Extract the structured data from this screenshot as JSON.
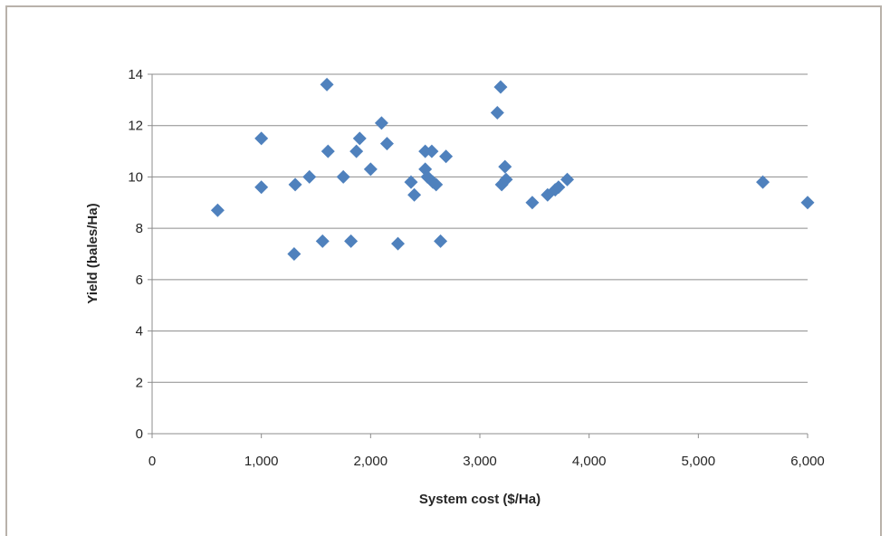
{
  "chart_data": {
    "type": "scatter",
    "xlabel": "System cost ($/Ha)",
    "ylabel": "Yield (bales/Ha)",
    "xlim": [
      0,
      6000
    ],
    "ylim": [
      0,
      14
    ],
    "x_ticks": [
      "0",
      "1,000",
      "2,000",
      "3,000",
      "4,000",
      "5,000",
      "6,000"
    ],
    "x_tick_values": [
      0,
      1000,
      2000,
      3000,
      4000,
      5000,
      6000
    ],
    "y_ticks": [
      "0",
      "2",
      "4",
      "6",
      "8",
      "10",
      "12",
      "14"
    ],
    "y_tick_values": [
      0,
      2,
      4,
      6,
      8,
      10,
      12,
      14
    ],
    "grid": "horizontal",
    "legend": "none",
    "marker": "diamond",
    "marker_color": "#4f81bd",
    "series": [
      {
        "points": [
          {
            "x": 600,
            "y": 8.7
          },
          {
            "x": 1000,
            "y": 11.5
          },
          {
            "x": 1000,
            "y": 9.6
          },
          {
            "x": 1300,
            "y": 7.0
          },
          {
            "x": 1310,
            "y": 9.7
          },
          {
            "x": 1440,
            "y": 10.0
          },
          {
            "x": 1560,
            "y": 7.5
          },
          {
            "x": 1600,
            "y": 13.6
          },
          {
            "x": 1610,
            "y": 11.0
          },
          {
            "x": 1750,
            "y": 10.0
          },
          {
            "x": 1820,
            "y": 7.5
          },
          {
            "x": 1870,
            "y": 11.0
          },
          {
            "x": 1900,
            "y": 11.5
          },
          {
            "x": 2000,
            "y": 10.3
          },
          {
            "x": 2100,
            "y": 12.1
          },
          {
            "x": 2150,
            "y": 11.3
          },
          {
            "x": 2250,
            "y": 7.4
          },
          {
            "x": 2370,
            "y": 9.8
          },
          {
            "x": 2400,
            "y": 9.3
          },
          {
            "x": 2500,
            "y": 11.0
          },
          {
            "x": 2500,
            "y": 10.3
          },
          {
            "x": 2520,
            "y": 10.0
          },
          {
            "x": 2560,
            "y": 11.0
          },
          {
            "x": 2570,
            "y": 9.8
          },
          {
            "x": 2600,
            "y": 9.7
          },
          {
            "x": 2640,
            "y": 7.5
          },
          {
            "x": 2690,
            "y": 10.8
          },
          {
            "x": 3160,
            "y": 12.5
          },
          {
            "x": 3190,
            "y": 13.5
          },
          {
            "x": 3200,
            "y": 9.7
          },
          {
            "x": 3230,
            "y": 10.4
          },
          {
            "x": 3240,
            "y": 9.9
          },
          {
            "x": 3480,
            "y": 9.0
          },
          {
            "x": 3620,
            "y": 9.3
          },
          {
            "x": 3690,
            "y": 9.5
          },
          {
            "x": 3720,
            "y": 9.6
          },
          {
            "x": 3800,
            "y": 9.9
          },
          {
            "x": 5590,
            "y": 9.8
          },
          {
            "x": 6000,
            "y": 9.0
          }
        ]
      }
    ]
  }
}
